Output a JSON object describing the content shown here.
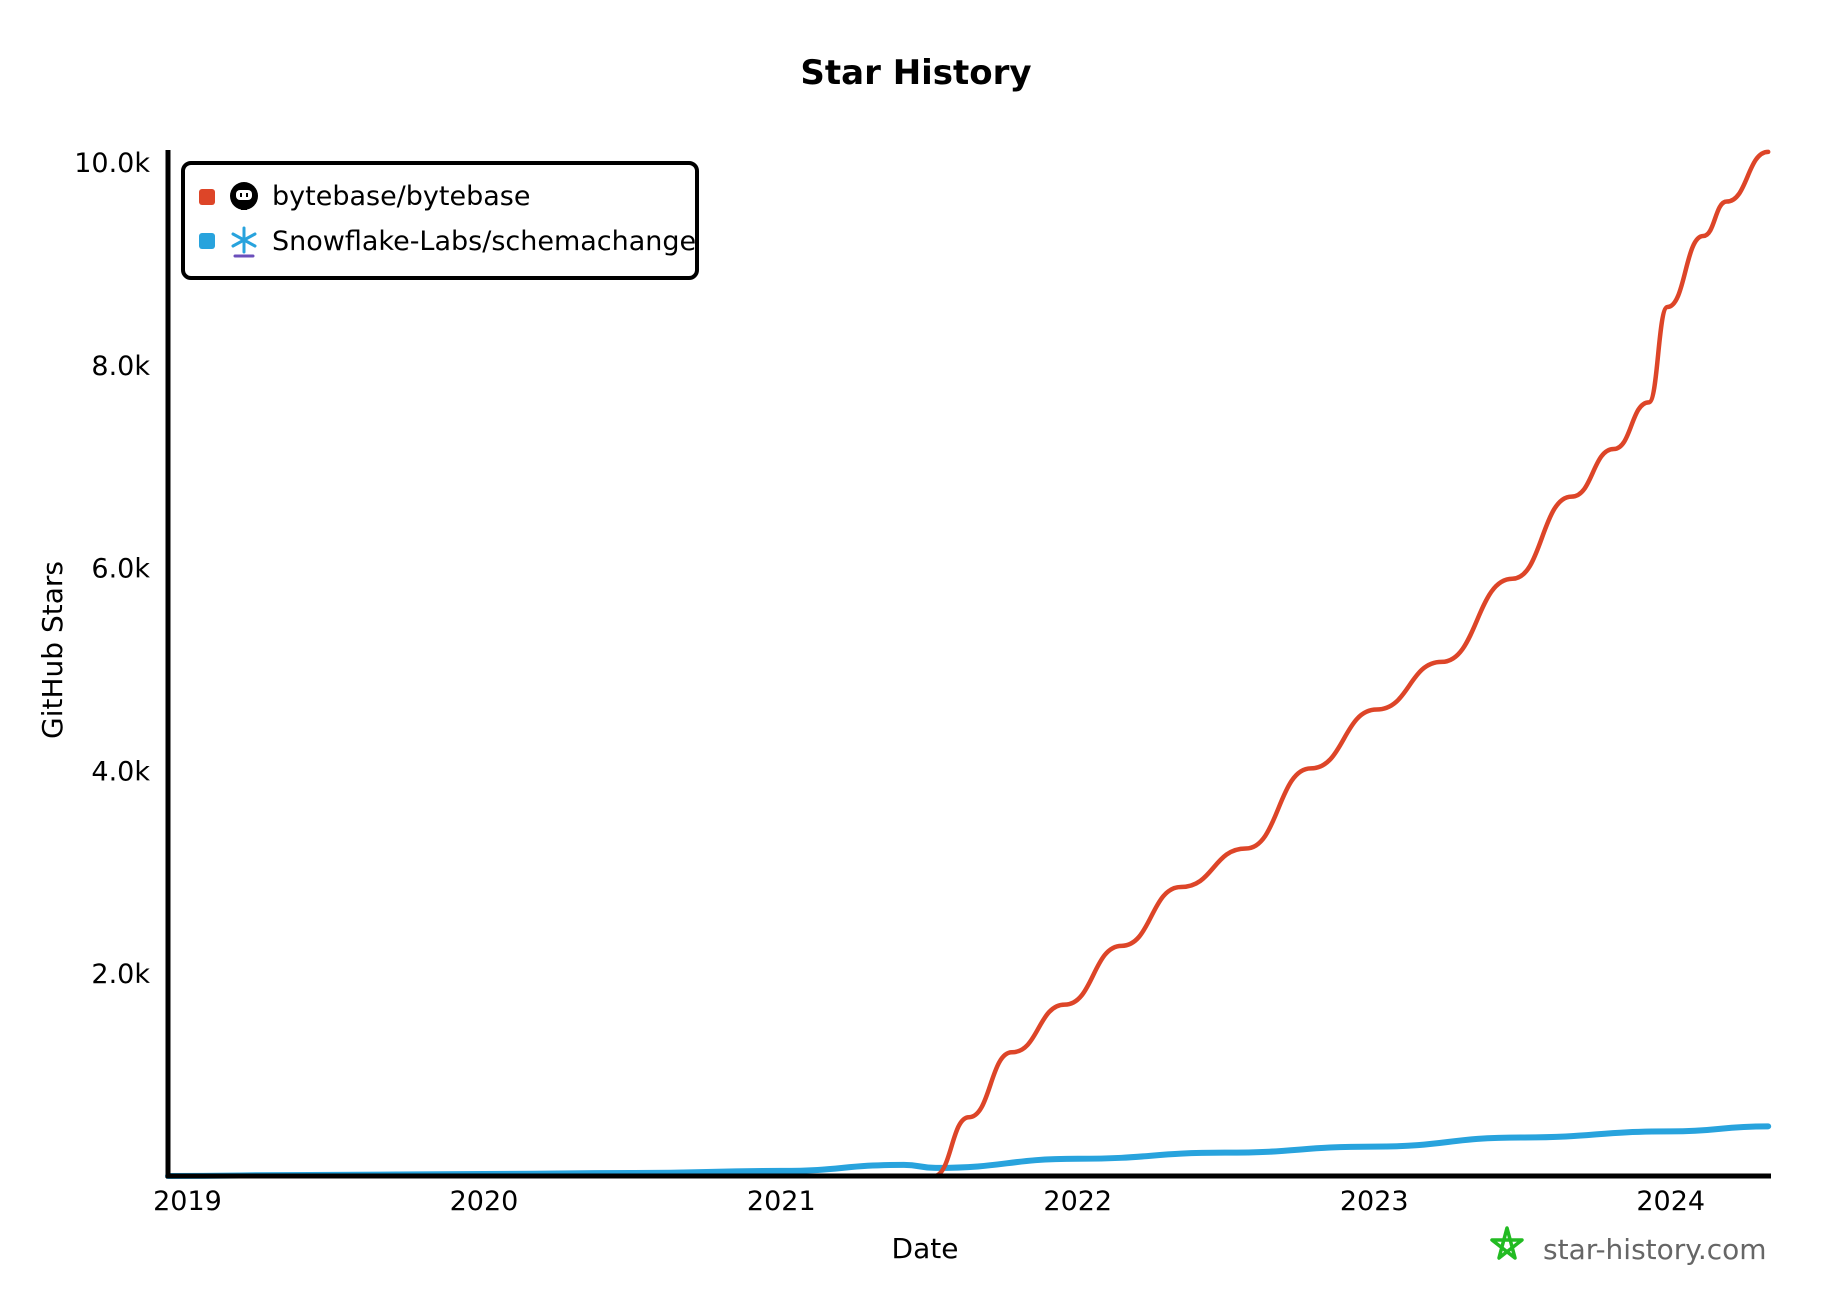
{
  "chart_data": {
    "type": "line",
    "title": "Star History",
    "xlabel": "Date",
    "ylabel": "GitHub Stars",
    "xlim": [
      "2018-12-08",
      "2024-05-01"
    ],
    "ylim": [
      0,
      10000
    ],
    "x_ticks": [
      "2019",
      "2020",
      "2021",
      "2022",
      "2023",
      "2024"
    ],
    "y_ticks": [
      {
        "value": 2000,
        "label": "2.0k"
      },
      {
        "value": 4000,
        "label": "4.0k"
      },
      {
        "value": 6000,
        "label": "6.0k"
      },
      {
        "value": 8000,
        "label": "8.0k"
      },
      {
        "value": 10000,
        "label": "10.0k"
      }
    ],
    "grid": false,
    "legend_position": "top-left",
    "watermark": "star-history.com",
    "series": [
      {
        "name": "bytebase/bytebase",
        "icon": "github-icon",
        "color": "#dd4528",
        "points": [
          [
            "2021-07-08",
            0
          ],
          [
            "2021-08-20",
            580
          ],
          [
            "2021-10-12",
            1220
          ],
          [
            "2021-12-16",
            1690
          ],
          [
            "2022-02-24",
            2270
          ],
          [
            "2022-05-08",
            2850
          ],
          [
            "2022-07-27",
            3230
          ],
          [
            "2022-10-15",
            4020
          ],
          [
            "2023-01-04",
            4600
          ],
          [
            "2023-03-25",
            5070
          ],
          [
            "2023-06-20",
            5890
          ],
          [
            "2023-09-01",
            6700
          ],
          [
            "2023-10-23",
            7170
          ],
          [
            "2023-12-05",
            7630
          ],
          [
            "2023-12-28",
            8570
          ],
          [
            "2024-02-10",
            9270
          ],
          [
            "2024-03-10",
            9610
          ],
          [
            "2024-04-30",
            10100
          ]
        ]
      },
      {
        "name": "Snowflake-Labs/schemachange",
        "icon": "snowflake-icon",
        "color": "#28a3dd",
        "points": [
          [
            "2018-12-08",
            0
          ],
          [
            "2019-06-01",
            10
          ],
          [
            "2020-01-01",
            20
          ],
          [
            "2020-07-01",
            30
          ],
          [
            "2021-01-01",
            50
          ],
          [
            "2021-06-01",
            110
          ],
          [
            "2021-07-10",
            80
          ],
          [
            "2022-01-01",
            170
          ],
          [
            "2022-07-01",
            230
          ],
          [
            "2023-01-01",
            290
          ],
          [
            "2023-07-01",
            380
          ],
          [
            "2024-01-01",
            440
          ],
          [
            "2024-04-30",
            490
          ]
        ]
      }
    ]
  }
}
